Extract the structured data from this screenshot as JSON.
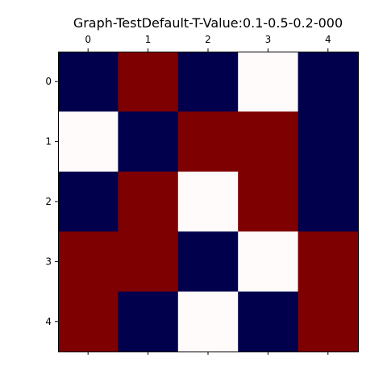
{
  "chart_data": {
    "type": "heatmap",
    "title": "Graph-TestDefault-T-Value:0.1-0.5-0.2-000",
    "x_ticks": [
      "0",
      "1",
      "2",
      "3",
      "4"
    ],
    "y_ticks": [
      "0",
      "1",
      "2",
      "3",
      "4"
    ],
    "x_tick_position": "top",
    "colormap": "seismic",
    "color_scale": {
      "min": -1,
      "max": 1,
      "low_color": "#00004c",
      "mid_color": "#fffbfb",
      "high_color": "#7f0000"
    },
    "grid": false,
    "values": [
      [
        -1,
        1,
        -1,
        0,
        -1
      ],
      [
        0,
        -1,
        1,
        1,
        -1
      ],
      [
        -1,
        1,
        0,
        1,
        -1
      ],
      [
        1,
        1,
        -1,
        0,
        1
      ],
      [
        1,
        -1,
        0,
        -1,
        1
      ]
    ]
  }
}
